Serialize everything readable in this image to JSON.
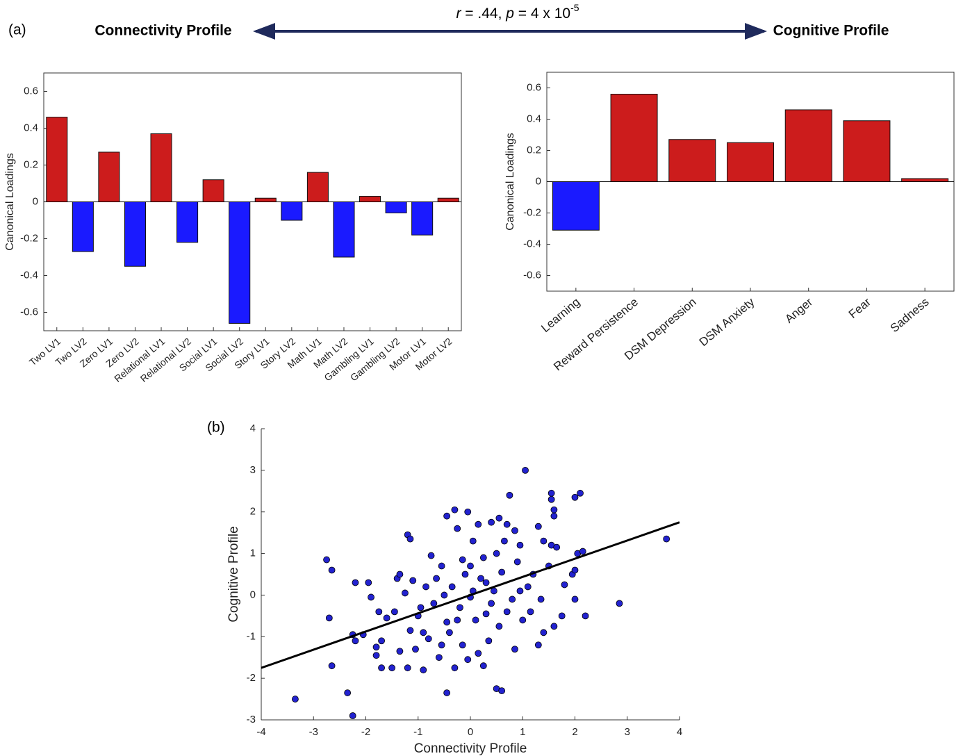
{
  "figure": {
    "panel_label": "(a)",
    "left_label": "Connectivity Profile",
    "right_label": "Cognitive Profile",
    "stat_parts": [
      "r",
      " = .44, ",
      "p",
      " = 4 x 10",
      "-5"
    ]
  },
  "chart_data": [
    {
      "type": "bar",
      "ylabel": "Canonical Loadings",
      "categories": [
        "Two LV1",
        "Two LV2",
        "Zero LV1",
        "Zero LV2",
        "Relational LV1",
        "Relational LV2",
        "Social LV1",
        "Social LV2",
        "Story LV1",
        "Story LV2",
        "Math LV1",
        "Math LV2",
        "Gambling LV1",
        "Gambling LV2",
        "Motor LV1",
        "Motor LV2"
      ],
      "values": [
        0.46,
        -0.27,
        0.27,
        -0.35,
        0.37,
        -0.22,
        0.12,
        -0.66,
        0.02,
        -0.1,
        0.16,
        -0.3,
        0.03,
        -0.06,
        -0.18,
        0.02
      ],
      "color_positive": "#cc1c1c",
      "color_negative": "#1a1aff",
      "ylim": [
        -0.7,
        0.7
      ],
      "yticks": [
        -0.6,
        -0.4,
        -0.2,
        0,
        0.2,
        0.4,
        0.6
      ]
    },
    {
      "type": "bar",
      "ylabel": "Canonical Loadings",
      "categories": [
        "Learning",
        "Reward Persistence",
        "DSM Depression",
        "DSM Anxiety",
        "Anger",
        "Fear",
        "Sadness"
      ],
      "values": [
        -0.31,
        0.56,
        0.27,
        0.25,
        0.46,
        0.39,
        0.02
      ],
      "color_positive": "#cc1c1c",
      "color_negative": "#1a1aff",
      "ylim": [
        -0.7,
        0.7
      ],
      "yticks": [
        -0.6,
        -0.4,
        -0.2,
        0,
        0.2,
        0.4,
        0.6
      ]
    },
    {
      "type": "scatter",
      "panel_label": "(b)",
      "xlabel": "Connectivity Profile",
      "ylabel": "Cognitive Profile",
      "color": "#2222d0",
      "x": [
        -3.35,
        -2.25,
        -2.35,
        -2.75,
        -2.65,
        -2.7,
        -2.65,
        1.05,
        2.1,
        2.0,
        1.55,
        1.55,
        1.6,
        1.6,
        3.75,
        2.85,
        2.2,
        1.3,
        0.5,
        0.6,
        -0.45,
        -0.3,
        -0.05,
        0.75,
        -1.2,
        -1.15,
        -0.45,
        -0.25,
        0.15,
        0.4,
        0.55,
        0.7,
        0.85,
        0.95,
        1.3,
        1.4,
        1.55,
        1.65,
        2.05,
        2.15,
        1.95,
        2.0,
        1.8,
        2.0,
        1.75,
        1.6,
        1.4,
        1.15,
        1.0,
        0.8,
        -2.2,
        -1.95,
        -1.9,
        -1.75,
        -1.6,
        -1.7,
        -1.8,
        -1.8,
        -1.7,
        -1.5,
        -1.2,
        -0.9,
        -2.25,
        -2.05,
        -2.2,
        -1.35,
        -1.05,
        -1.4,
        -1.35,
        -1.1,
        -1.25,
        -1.0,
        -0.9,
        -0.75,
        -0.55,
        -0.35,
        -0.2,
        -0.1,
        0.05,
        0.1,
        0.25,
        0.3,
        0.4,
        0.5,
        0.6,
        0.7,
        0.35,
        0.15,
        -0.15,
        -0.4,
        -0.6,
        -0.7,
        -0.5,
        -0.25,
        0.0,
        0.2,
        0.45,
        0.9,
        1.1,
        1.2,
        -0.85,
        -0.95,
        -0.65,
        0.55,
        0.85,
        0.25,
        -0.05,
        -0.3,
        -0.55,
        0.65,
        0.05,
        -0.15,
        0.3,
        -1.45,
        -0.45,
        0.95,
        1.35,
        1.5,
        -1.15,
        -0.8,
        0.0
      ],
      "y": [
        -2.5,
        -2.9,
        -2.35,
        0.85,
        0.6,
        -0.55,
        -1.7,
        3.0,
        2.45,
        2.35,
        2.45,
        2.3,
        2.05,
        1.9,
        1.35,
        -0.2,
        -0.5,
        -1.2,
        -2.25,
        -2.3,
        -2.35,
        2.05,
        2.0,
        2.4,
        1.45,
        1.35,
        1.9,
        1.6,
        1.7,
        1.75,
        1.85,
        1.7,
        1.55,
        1.2,
        1.65,
        1.3,
        1.2,
        1.15,
        1.0,
        1.05,
        0.5,
        0.6,
        0.25,
        -0.1,
        -0.5,
        -0.75,
        -0.9,
        -0.4,
        -0.6,
        -0.1,
        0.3,
        0.3,
        -0.05,
        -0.4,
        -0.55,
        -1.1,
        -1.25,
        -1.45,
        -1.75,
        -1.75,
        -1.75,
        -1.8,
        -0.95,
        -0.95,
        -1.1,
        -1.35,
        -1.3,
        0.4,
        0.5,
        0.35,
        0.05,
        -0.5,
        -0.9,
        0.95,
        0.7,
        0.2,
        -0.3,
        0.5,
        0.1,
        -0.6,
        0.9,
        0.3,
        -0.2,
        1.0,
        0.55,
        -0.4,
        -1.1,
        -1.4,
        -1.2,
        -0.9,
        -1.5,
        -0.2,
        0.0,
        -0.6,
        -0.05,
        0.4,
        0.1,
        0.8,
        0.2,
        0.5,
        0.2,
        -0.3,
        0.4,
        -0.75,
        -1.3,
        -1.7,
        -1.55,
        -1.75,
        -1.2,
        1.3,
        1.3,
        0.85,
        -0.45,
        -0.4,
        -0.65,
        0.1,
        -0.1,
        0.7,
        -0.85,
        -1.05,
        0.7
      ],
      "fit_line": {
        "x": [
          -4,
          4
        ],
        "y": [
          -1.75,
          1.75
        ]
      },
      "xlim": [
        -4,
        4
      ],
      "xticks": [
        -4,
        -3,
        -2,
        -1,
        0,
        1,
        2,
        3,
        4
      ],
      "ylim": [
        -3,
        4
      ],
      "yticks": [
        -3,
        -2,
        -1,
        0,
        1,
        2,
        3,
        4
      ]
    }
  ]
}
